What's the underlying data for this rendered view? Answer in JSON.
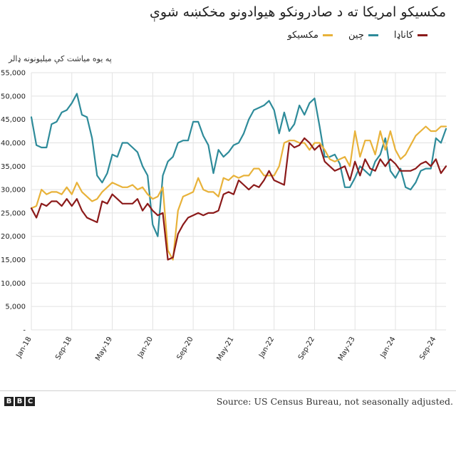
{
  "title": "مکسیکو امریکا ته د صادرونکو هیوادونو مخکښه شوې",
  "legend": [
    {
      "label": "کاناډا",
      "color": "#8b1a1a"
    },
    {
      "label": "چین",
      "color": "#2e8b9a"
    },
    {
      "label": "مکسیکو",
      "color": "#e8b23a"
    }
  ],
  "unit_label": "په یوه میاشت کې میلیونونه ډالر",
  "source": "Source: US Census Bureau, not seasonally adjusted.",
  "brand": [
    "B",
    "B",
    "C"
  ],
  "chart_data": {
    "type": "line",
    "ylim": [
      0,
      55000
    ],
    "y_ticks": [
      "-",
      "5,000",
      "10,000",
      "15,000",
      "20,000",
      "25,000",
      "30,000",
      "35,000",
      "40,000",
      "45,000",
      "50,000",
      "55,000"
    ],
    "x_ticks": [
      "Jan-18",
      "Sep-18",
      "May-19",
      "Jan-20",
      "Sep-20",
      "May-21",
      "Jan-22",
      "Sep-22",
      "May-23",
      "Jan-24",
      "Sep-24"
    ],
    "x_tick_index": [
      0,
      8,
      16,
      24,
      32,
      40,
      48,
      56,
      64,
      72,
      80
    ],
    "series": [
      {
        "name": "چین",
        "color": "#2e8b9a",
        "values": [
          45500,
          39500,
          39000,
          39000,
          44000,
          44500,
          46500,
          47000,
          48500,
          50500,
          46000,
          45500,
          41000,
          33000,
          31500,
          33500,
          37500,
          37000,
          40000,
          40000,
          39000,
          38000,
          35000,
          33000,
          22500,
          20000,
          33000,
          36000,
          37000,
          40000,
          40500,
          40500,
          44500,
          44500,
          41500,
          39500,
          33500,
          38500,
          37000,
          38000,
          39500,
          40000,
          42000,
          45000,
          47000,
          47500,
          48000,
          49000,
          47000,
          42000,
          46500,
          42500,
          44000,
          48000,
          46000,
          48500,
          49500,
          43500,
          37000,
          37000,
          37500,
          35500,
          30500,
          30500,
          32500,
          35000,
          34000,
          33000,
          36000,
          37500,
          41000,
          34000,
          32500,
          34500,
          30500,
          30000,
          31500,
          34000,
          34500,
          34500,
          41000,
          40000,
          43000
        ]
      },
      {
        "name": "کاناډا",
        "color": "#8b1a1a",
        "values": [
          26000,
          24000,
          27000,
          26500,
          27500,
          27500,
          26500,
          28000,
          26500,
          28000,
          25500,
          24000,
          23500,
          23000,
          27500,
          27000,
          29000,
          28000,
          27000,
          27000,
          27000,
          28000,
          25500,
          27000,
          25500,
          24500,
          25000,
          15000,
          15500,
          20500,
          22500,
          24000,
          24500,
          25000,
          24500,
          25000,
          25000,
          25500,
          29000,
          29500,
          29000,
          32000,
          31000,
          30000,
          31000,
          30500,
          32000,
          34000,
          32000,
          31500,
          31000,
          40000,
          39000,
          39500,
          41000,
          40000,
          38500,
          39500,
          36000,
          35000,
          34000,
          34500,
          35000,
          32000,
          36000,
          33000,
          36500,
          34500,
          34000,
          36500,
          35000,
          36500,
          35500,
          34000,
          34000,
          34000,
          34500,
          35500,
          36000,
          35000,
          36500,
          33500,
          35000
        ]
      },
      {
        "name": "مکسیکو",
        "color": "#e8b23a",
        "values": [
          26000,
          26500,
          30000,
          29000,
          29500,
          29500,
          29000,
          30500,
          29000,
          31500,
          29500,
          28500,
          27500,
          28000,
          29500,
          30500,
          31500,
          31000,
          30500,
          30500,
          31000,
          30000,
          30500,
          29000,
          28000,
          28500,
          30500,
          17000,
          15000,
          25500,
          28500,
          29000,
          29500,
          32500,
          30000,
          29500,
          29500,
          28500,
          32500,
          32000,
          33000,
          32500,
          33000,
          33000,
          34500,
          34500,
          33000,
          33000,
          33000,
          35000,
          40000,
          40500,
          40500,
          40000,
          40000,
          38500,
          40000,
          40000,
          38500,
          36500,
          36000,
          36500,
          37000,
          35000,
          42500,
          37000,
          40500,
          40500,
          37500,
          42500,
          38500,
          42500,
          38500,
          36500,
          37500,
          39500,
          41500,
          42500,
          43500,
          42500,
          42500,
          43500,
          43500
        ]
      }
    ]
  }
}
